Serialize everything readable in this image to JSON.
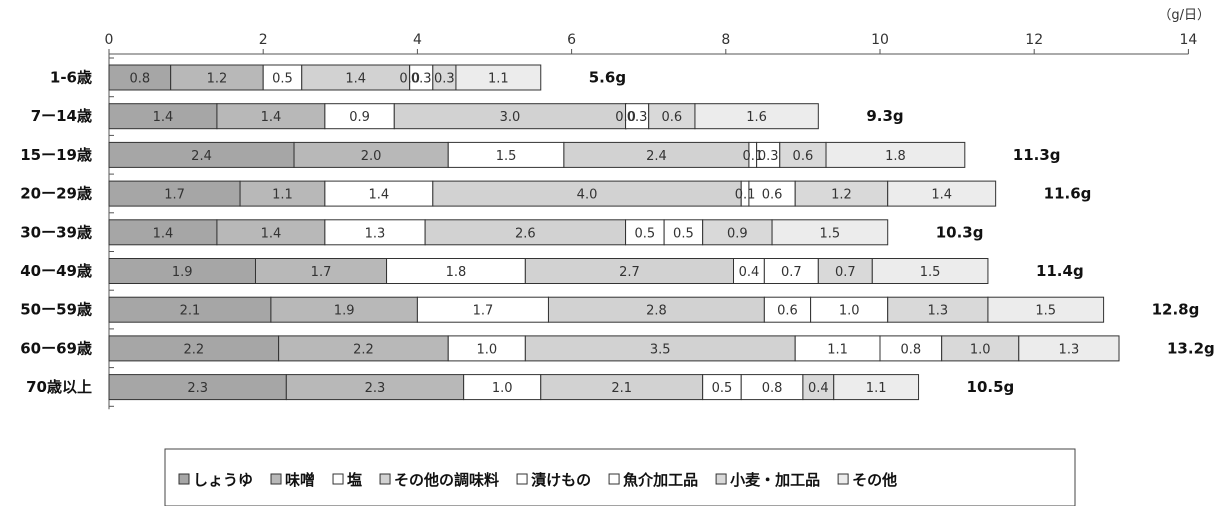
{
  "chart_data": {
    "type": "bar",
    "orientation": "horizontal",
    "stacked": true,
    "unit": "（g/日）",
    "xlim": [
      0,
      14
    ],
    "x_ticks": [
      0,
      2,
      4,
      6,
      8,
      10,
      12,
      14
    ],
    "categories": [
      "1-6歳",
      "7ー14歳",
      "15ー19歳",
      "20ー29歳",
      "30ー39歳",
      "40ー49歳",
      "50ー59歳",
      "60ー69歳",
      "70歳以上"
    ],
    "totals": [
      "5.6g",
      "9.3g",
      "11.3g",
      "11.6g",
      "10.3g",
      "11.4g",
      "12.8g",
      "13.2g",
      "10.5g"
    ],
    "legend_position": "bottom",
    "series": [
      {
        "name": "しょうゆ",
        "color": "#a6a6a6",
        "values": [
          0.8,
          1.4,
          2.4,
          1.7,
          1.4,
          1.9,
          2.1,
          2.2,
          2.3
        ]
      },
      {
        "name": "味噌",
        "color": "#b8b8b8",
        "values": [
          1.2,
          1.4,
          2.0,
          1.1,
          1.4,
          1.7,
          1.9,
          2.2,
          2.3
        ]
      },
      {
        "name": "塩",
        "color": "#ffffff",
        "values": [
          0.5,
          0.9,
          1.5,
          1.4,
          1.3,
          1.8,
          1.7,
          1.0,
          1.0
        ]
      },
      {
        "name": "その他の調味料",
        "color": "#d2d2d2",
        "values": [
          1.4,
          3.0,
          2.4,
          4.0,
          2.6,
          2.7,
          2.8,
          3.5,
          2.1
        ]
      },
      {
        "name": "漬けもの",
        "color": "#ffffff",
        "values": [
          0.0,
          0.0,
          0.1,
          0.1,
          0.5,
          0.4,
          0.6,
          1.1,
          0.5
        ]
      },
      {
        "name": "魚介加工品",
        "color": "#ffffff",
        "values": [
          0.3,
          0.3,
          0.3,
          0.6,
          0.5,
          0.7,
          1.0,
          0.8,
          0.8
        ]
      },
      {
        "name": "小麦・加工品",
        "color": "#d9d9d9",
        "values": [
          0.3,
          0.6,
          0.6,
          1.2,
          0.9,
          0.7,
          1.3,
          1.0,
          0.4
        ]
      },
      {
        "name": "その他",
        "color": "#ececec",
        "values": [
          1.1,
          1.6,
          1.8,
          1.4,
          1.5,
          1.5,
          1.5,
          1.3,
          1.1
        ]
      }
    ],
    "segment_labels": [
      [
        "0.8",
        "1.2",
        "0.5",
        "1.4",
        "0.0",
        "0.3",
        "0.3",
        "1.1"
      ],
      [
        "1.4",
        "1.4",
        "0.9",
        "3.0",
        "0.0",
        "0.3",
        "0.6",
        "1.6"
      ],
      [
        "2.4",
        "2.0",
        "1.5",
        "2.4",
        "0.1",
        "0.3",
        "0.6",
        "1.8"
      ],
      [
        "1.7",
        "1.1",
        "1.4",
        "4.0",
        "0.1",
        "0.6",
        "1.2",
        "1.4"
      ],
      [
        "1.4",
        "1.4",
        "1.3",
        "2.6",
        "0.5",
        "0.5",
        "0.9",
        "1.5"
      ],
      [
        "1.9",
        "1.7",
        "1.8",
        "2.7",
        "0.4",
        "0.7",
        "0.7",
        "1.5"
      ],
      [
        "2.1",
        "1.9",
        "1.7",
        "2.8",
        "0.6",
        "1.0",
        "1.3",
        "1.5"
      ],
      [
        "2.2",
        "2.2",
        "1.0",
        "3.5",
        "1.1",
        "0.8",
        "1.0",
        "1.3"
      ],
      [
        "2.3",
        "2.3",
        "1.0",
        "2.1",
        "0.5",
        "0.8",
        "0.4",
        "1.1"
      ]
    ]
  }
}
